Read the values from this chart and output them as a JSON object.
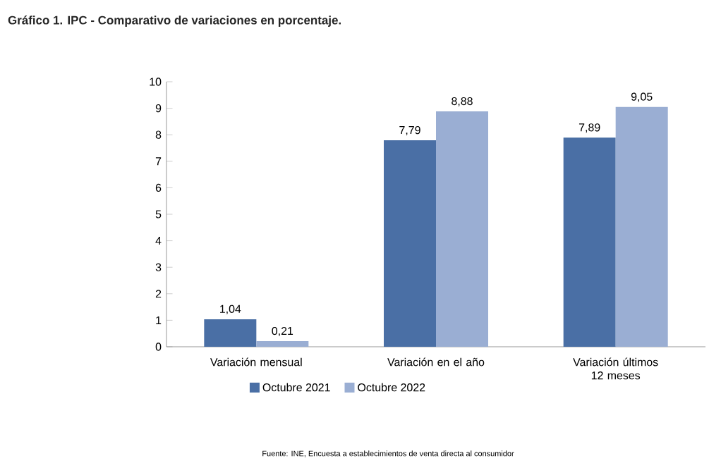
{
  "chart_data": {
    "type": "bar",
    "title": "Gráfico 1. IPC - Comparativo de variaciones en porcentaje.",
    "categories": [
      "Variación mensual",
      "Variación en el año",
      "Variación últimos 12 meses"
    ],
    "series": [
      {
        "name": "Octubre 2021",
        "color": "#4a6fa5",
        "values": [
          1.04,
          7.79,
          7.89
        ],
        "value_labels": [
          "1,04",
          "7,79",
          "7,89"
        ]
      },
      {
        "name": "Octubre 2022",
        "color": "#9aaed3",
        "values": [
          0.21,
          8.88,
          9.05
        ],
        "value_labels": [
          "0,21",
          "8,88",
          "9,05"
        ]
      }
    ],
    "ylim": [
      0,
      10
    ],
    "yticks": [
      0,
      1,
      2,
      3,
      4,
      5,
      6,
      7,
      8,
      9,
      10
    ],
    "legend": "bottom",
    "annotations": [
      "Fuente: INE, Encuesta a establecimientos de venta directa al consumidor"
    ]
  }
}
